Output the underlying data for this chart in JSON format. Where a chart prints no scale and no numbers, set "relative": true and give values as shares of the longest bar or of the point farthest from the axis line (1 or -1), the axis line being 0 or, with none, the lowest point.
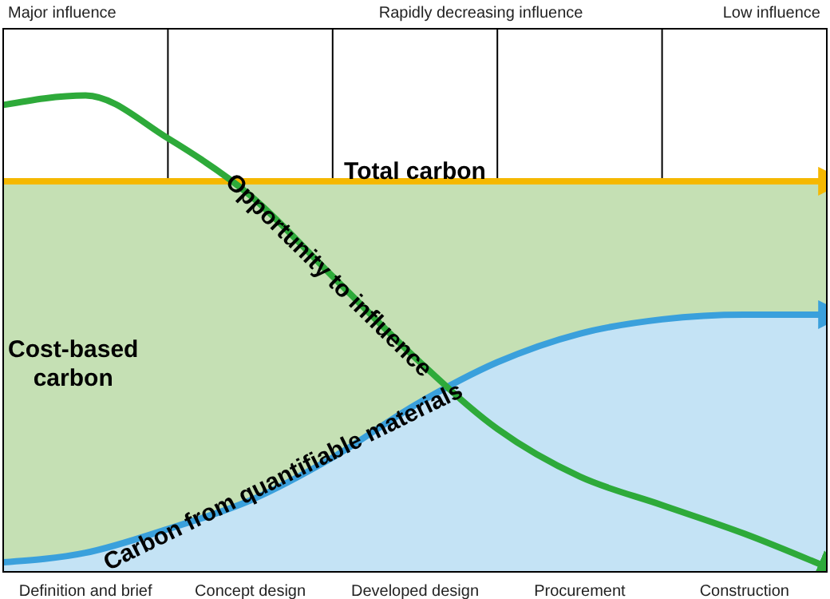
{
  "chart_data": {
    "type": "line",
    "relative": true,
    "legend": false,
    "grid": "x",
    "annotations": [
      "Major influence",
      "Rapidly decreasing influence",
      "Low influence"
    ],
    "categories": [
      null,
      "Definition and brief",
      null,
      "Concept design",
      null,
      "Developed design",
      null,
      "Procurement",
      null,
      "Construction",
      null
    ],
    "bands": [
      {
        "axis": "y",
        "from": 0,
        "to": 0.82,
        "label": "Cost-based carbon",
        "color": "#c5e0b4"
      }
    ],
    "series": [
      {
        "name": "Carbon from quantifiable materials",
        "type": "area",
        "color": "#3aa0dc",
        "values": [
          0.02,
          0.04,
          0.09,
          0.15,
          0.24,
          0.35,
          0.44,
          0.5,
          0.53,
          0.54,
          0.54
        ]
      },
      {
        "name": "Total carbon",
        "color": "#f5b800",
        "values": [
          0.82,
          0.82,
          0.82,
          0.82,
          0.82,
          0.82,
          0.82,
          0.82,
          0.82,
          0.82,
          0.82
        ]
      },
      {
        "name": "Opportunity to influence",
        "color": "#2eaa3a",
        "values": [
          0.98,
          1,
          0.91,
          0.79,
          0.62,
          0.45,
          0.3,
          0.2,
          0.14,
          0.08,
          0.01
        ]
      }
    ]
  }
}
